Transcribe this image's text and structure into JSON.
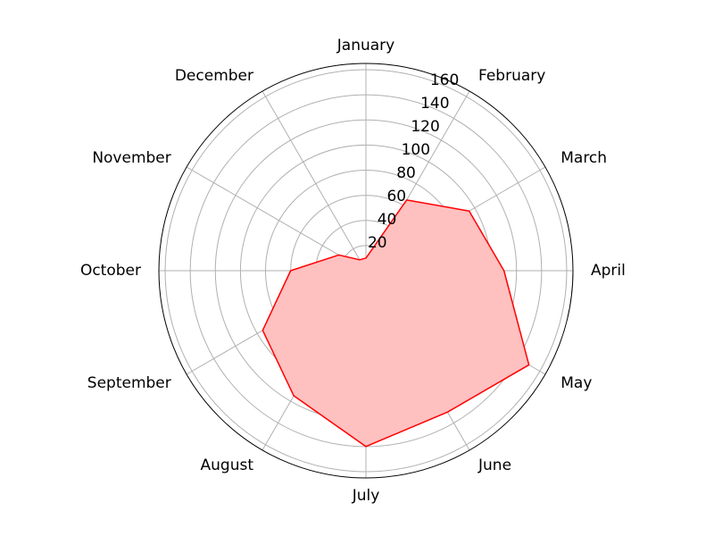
{
  "chart_data": {
    "type": "radar",
    "categories": [
      "January",
      "February",
      "March",
      "April",
      "May",
      "June",
      "July",
      "August",
      "September",
      "October",
      "November",
      "December"
    ],
    "series": [
      {
        "values": [
          10,
          65,
          95,
          110,
          150,
          130,
          140,
          115,
          95,
          60,
          25,
          10
        ],
        "line_color": "#ff0000",
        "fill_color": "#ffc0c0"
      }
    ],
    "radial_ticks": [
      20,
      40,
      60,
      80,
      100,
      120,
      140,
      160
    ],
    "rlim": [
      0,
      165
    ],
    "grid": true,
    "grid_color": "#b0b0b0",
    "frame_color": "#000000"
  }
}
